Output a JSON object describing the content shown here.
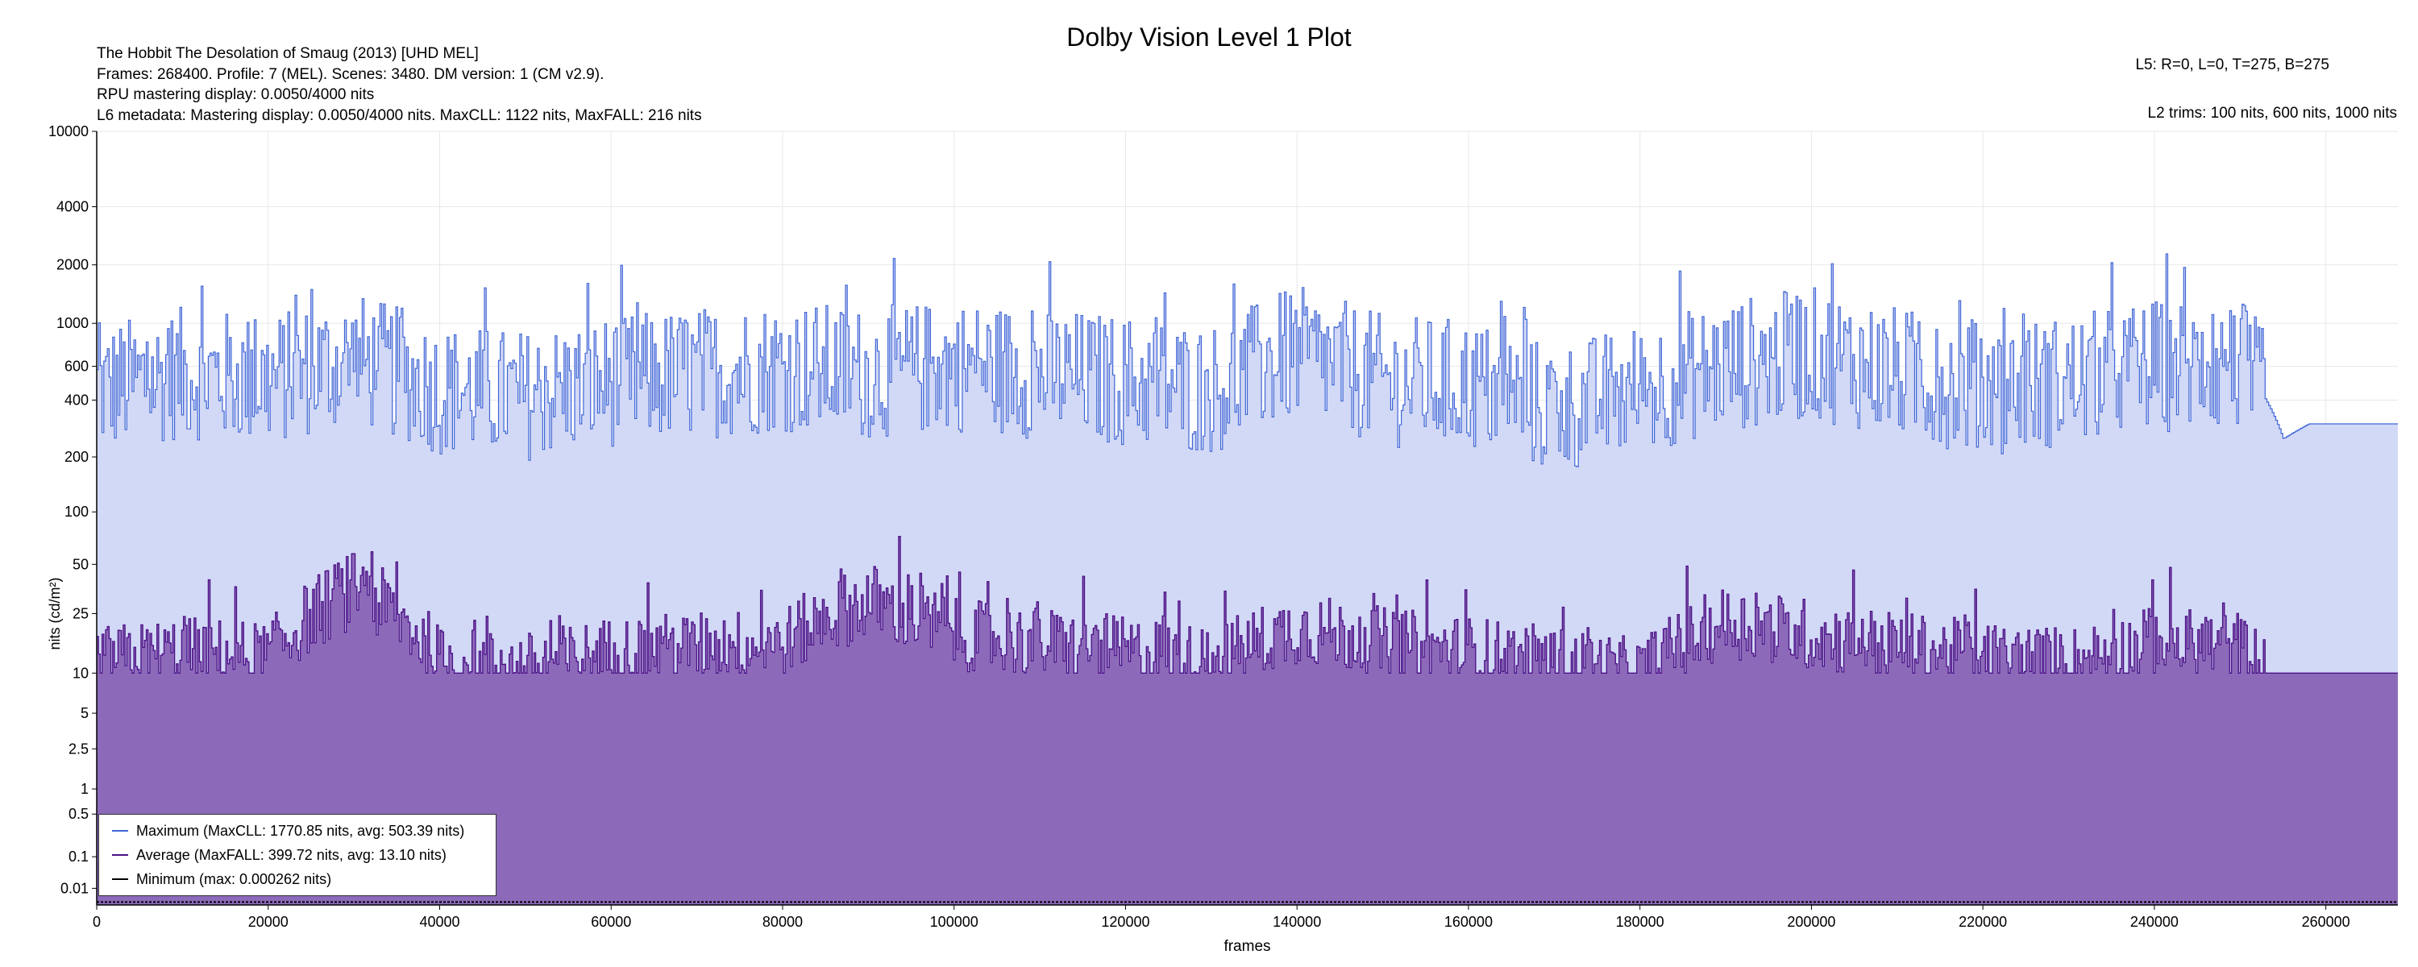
{
  "header": {
    "title": "Dolby Vision Level 1 Plot",
    "info_lines": [
      "The Hobbit The Desolation of Smaug (2013) [UHD MEL]",
      "Frames: 268400. Profile: 7 (MEL). Scenes: 3480. DM version: 1 (CM v2.9).",
      "RPU mastering display: 0.0050/4000 nits",
      "L6 metadata: Mastering display: 0.0050/4000 nits. MaxCLL: 1122 nits, MaxFALL: 216 nits"
    ],
    "l5": "L5: R=0, L=0, T=275, B=275",
    "l2": "L2 trims: 100 nits, 600 nits, 1000 nits"
  },
  "legend": {
    "maximum": "Maximum (MaxCLL: 1770.85 nits, avg: 503.39 nits)",
    "average": "Average (MaxFALL: 399.72 nits, avg: 13.10 nits)",
    "minimum": "Minimum (max: 0.000262 nits)"
  },
  "colors": {
    "max_line": "#3f65d6",
    "max_fill": "#d2d9f6",
    "avg_line": "#4b0f86",
    "avg_fill": "#8c6ab9",
    "min_line": "#000000"
  },
  "chart_data": {
    "type": "area",
    "xlabel": "frames",
    "ylabel": "nits (cd/m²)",
    "xlim": [
      0,
      268400
    ],
    "x_ticks": [
      0,
      20000,
      40000,
      60000,
      80000,
      100000,
      120000,
      140000,
      160000,
      180000,
      200000,
      220000,
      240000,
      260000
    ],
    "y_ticks": [
      0.01,
      0.1,
      0.5,
      1,
      2.5,
      5,
      10,
      25,
      50,
      100,
      200,
      400,
      600,
      1000,
      2000,
      4000,
      10000
    ],
    "y_tick_labels": [
      "0.01",
      "0.1",
      "0.5",
      "1",
      "2.5",
      "5",
      "10",
      "25",
      "50",
      "100",
      "200",
      "400",
      "600",
      "1000",
      "2000",
      "4000",
      "10000"
    ],
    "y_scale": "PQ (perceptual quantizer)",
    "grid": true,
    "legend_position": "bottom-left",
    "series": [
      {
        "name": "Maximum (MaxCLL: 1770.85 nits, avg: 503.39 nits)",
        "x": [
          0,
          10000,
          20000,
          30000,
          40000,
          50000,
          60000,
          70000,
          80000,
          90000,
          100000,
          110000,
          120000,
          130000,
          140000,
          150000,
          160000,
          170000,
          180000,
          190000,
          200000,
          210000,
          220000,
          230000,
          240000,
          250000,
          253000,
          255000,
          258000,
          268400
        ],
        "y": [
          450,
          550,
          500,
          650,
          450,
          420,
          500,
          550,
          600,
          550,
          600,
          550,
          500,
          450,
          700,
          500,
          480,
          350,
          450,
          600,
          700,
          550,
          450,
          500,
          600,
          600,
          400,
          250,
          300,
          300
        ]
      },
      {
        "name": "Average (MaxFALL: 399.72 nits, avg: 13.10 nits)",
        "x": [
          0,
          10000,
          20000,
          30000,
          40000,
          50000,
          60000,
          70000,
          80000,
          90000,
          100000,
          110000,
          120000,
          130000,
          140000,
          150000,
          160000,
          170000,
          180000,
          190000,
          200000,
          210000,
          220000,
          230000,
          240000,
          250000,
          253000,
          255000,
          268400
        ],
        "y": [
          12,
          14,
          13,
          35,
          12,
          11,
          14,
          15,
          16,
          30,
          18,
          16,
          14,
          12,
          20,
          16,
          14,
          12,
          10,
          22,
          18,
          15,
          13,
          12,
          16,
          15,
          10,
          10,
          10
        ]
      },
      {
        "name": "Minimum (max: 0.000262 nits)",
        "x": [
          0,
          268400
        ],
        "y": [
          0.0001,
          0.0001
        ]
      }
    ]
  }
}
